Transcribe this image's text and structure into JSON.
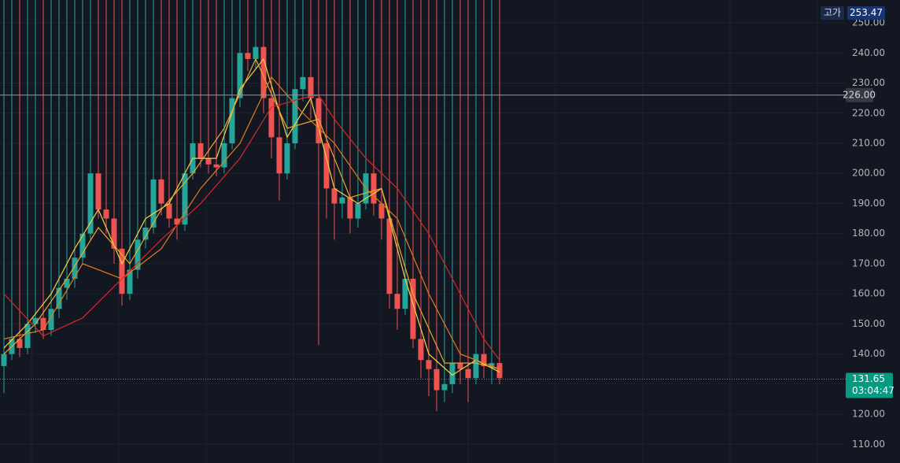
{
  "chart_data": {
    "type": "candlestick",
    "x": [
      0,
      1,
      2,
      3,
      4,
      5,
      6,
      7,
      8,
      9,
      10,
      11,
      12,
      13,
      14,
      15,
      16,
      17,
      18,
      19,
      20,
      21,
      22,
      23,
      24,
      25,
      26,
      27,
      28,
      29,
      30,
      31,
      32,
      33,
      34,
      35,
      36,
      37,
      38,
      39,
      40,
      41,
      42,
      43,
      44,
      45,
      46,
      47,
      48,
      49,
      50,
      51,
      52,
      53,
      54,
      55,
      56,
      57,
      58,
      59,
      60,
      61,
      62,
      63
    ],
    "open": [
      136,
      140,
      145,
      142,
      150,
      152,
      148,
      155,
      162,
      165,
      172,
      180,
      200,
      188,
      185,
      175,
      160,
      168,
      178,
      182,
      198,
      190,
      185,
      183,
      200,
      210,
      205,
      203,
      202,
      210,
      225,
      240,
      238,
      242,
      225,
      212,
      200,
      210,
      228,
      232,
      225,
      210,
      195,
      190,
      192,
      185,
      190,
      200,
      190,
      185,
      160,
      155,
      165,
      145,
      138,
      135,
      128,
      130,
      137,
      135,
      132,
      140,
      136,
      137
    ],
    "high": {
      "value": 253.47,
      "label": "253.47"
    },
    "low": [
      127,
      138,
      139,
      140,
      147,
      145,
      146,
      152,
      158,
      162,
      170,
      178,
      185,
      180,
      170,
      156,
      158,
      165,
      175,
      180,
      186,
      182,
      178,
      181,
      198,
      202,
      200,
      199,
      200,
      208,
      222,
      234,
      235,
      220,
      205,
      191,
      198,
      208,
      224,
      218,
      143,
      185,
      178,
      185,
      180,
      182,
      188,
      186,
      178,
      155,
      148,
      153,
      142,
      132,
      126,
      121,
      124,
      127,
      130,
      124,
      130,
      132,
      130,
      130
    ],
    "close": [
      140,
      145,
      142,
      150,
      152,
      148,
      155,
      162,
      165,
      172,
      180,
      200,
      188,
      185,
      175,
      160,
      168,
      178,
      182,
      198,
      190,
      185,
      183,
      200,
      210,
      205,
      203,
      202,
      210,
      225,
      240,
      238,
      242,
      225,
      212,
      200,
      210,
      228,
      232,
      225,
      210,
      195,
      190,
      192,
      185,
      190,
      200,
      190,
      185,
      160,
      155,
      165,
      145,
      138,
      135,
      128,
      130,
      137,
      135,
      132,
      140,
      136,
      137,
      132
    ],
    "up_color": "#26a69a",
    "down_color": "#ef5350",
    "series": [
      {
        "color": "#f5d142",
        "x": [
          0,
          3,
          6,
          9,
          12,
          15,
          18,
          21,
          24,
          27,
          30,
          33,
          36,
          39,
          42,
          45,
          48,
          51,
          54,
          57,
          60,
          63
        ],
        "values": [
          142,
          150,
          160,
          175,
          188,
          170,
          185,
          190,
          205,
          205,
          228,
          238,
          212,
          225,
          195,
          190,
          195,
          165,
          140,
          133,
          138,
          134
        ]
      },
      {
        "color": "#f0a830",
        "x": [
          0,
          4,
          8,
          12,
          16,
          20,
          24,
          28,
          32,
          36,
          40,
          44,
          48,
          52,
          56,
          60,
          63
        ],
        "values": [
          140,
          150,
          165,
          182,
          170,
          188,
          200,
          215,
          238,
          215,
          218,
          192,
          195,
          160,
          137,
          137,
          135
        ]
      },
      {
        "color": "#e07b1f",
        "x": [
          0,
          5,
          10,
          15,
          20,
          25,
          30,
          34,
          38,
          42,
          46,
          50,
          54,
          58,
          63
        ],
        "values": [
          145,
          148,
          170,
          165,
          175,
          195,
          210,
          232,
          220,
          210,
          195,
          185,
          160,
          140,
          135
        ]
      },
      {
        "color": "#d62828",
        "x": [
          0,
          5,
          10,
          15,
          20,
          25,
          30,
          34,
          38,
          40,
          42,
          46,
          50,
          54,
          58,
          61,
          63
        ],
        "values": [
          160,
          146,
          152,
          165,
          178,
          190,
          205,
          222,
          225,
          226,
          218,
          205,
          195,
          180,
          160,
          145,
          138
        ]
      }
    ],
    "xlim": [
      -0.5,
      107
    ],
    "ylim": [
      103.8,
      257.6
    ],
    "yticks": [
      {
        "value": 110,
        "label": "110.00"
      },
      {
        "value": 120,
        "label": "120.00"
      },
      {
        "value": 130,
        "label": "130.00"
      },
      {
        "value": 140,
        "label": "140.00"
      },
      {
        "value": 150,
        "label": "150.00"
      },
      {
        "value": 160,
        "label": "160.00"
      },
      {
        "value": 170,
        "label": "170.00"
      },
      {
        "value": 180,
        "label": "180.00"
      },
      {
        "value": 190,
        "label": "190.00"
      },
      {
        "value": 200,
        "label": "200.00"
      },
      {
        "value": 210,
        "label": "210.00"
      },
      {
        "value": 220,
        "label": "220.00"
      },
      {
        "value": 230,
        "label": "230.00"
      },
      {
        "value": 240,
        "label": "240.00"
      },
      {
        "value": 250,
        "label": "250.00"
      }
    ],
    "grid": true,
    "horizontal_line": {
      "value": 226,
      "label": "226.00"
    },
    "last_price": {
      "value": 131.65,
      "label": "131.65"
    },
    "countdown": "03:04:47",
    "high_title": "고가"
  }
}
